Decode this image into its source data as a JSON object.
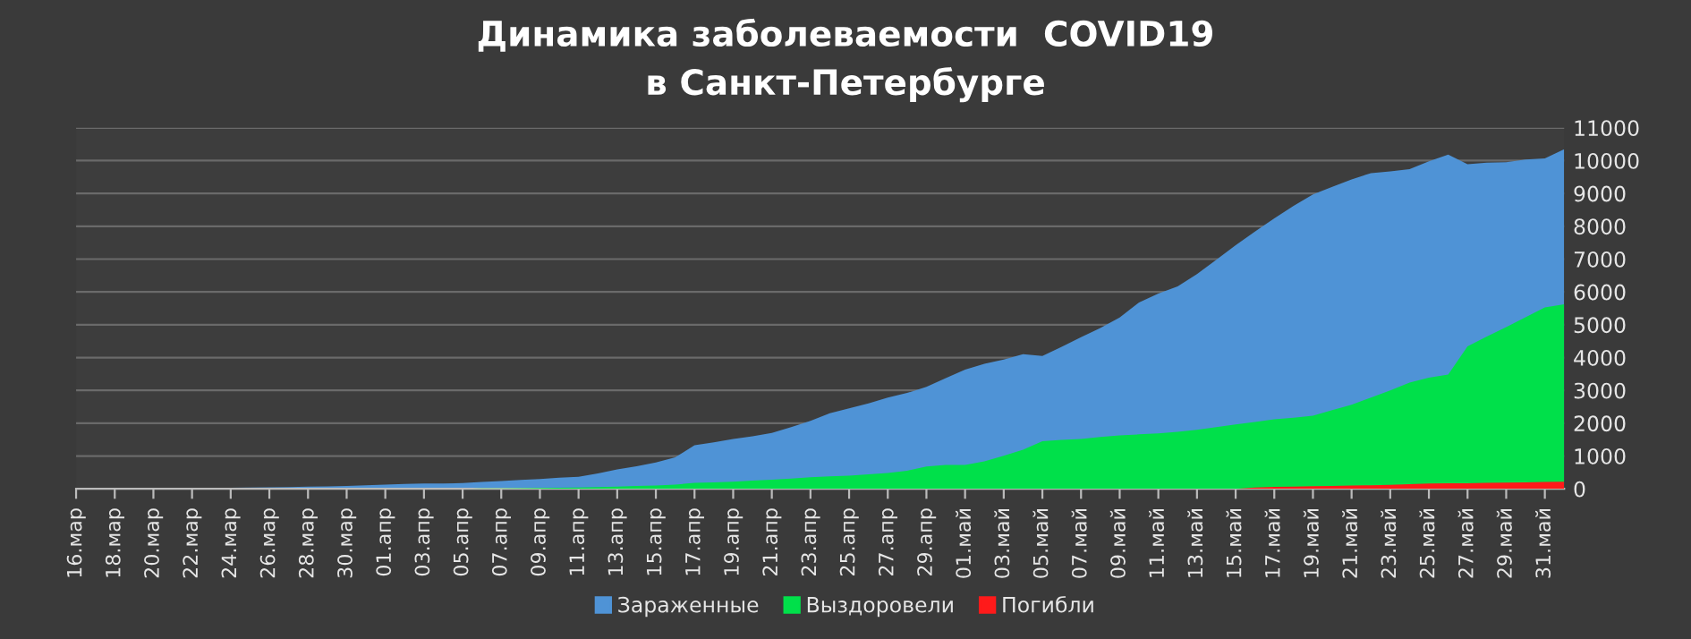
{
  "chart_data": {
    "type": "area",
    "title": "Динамика заболеваемости  COVID19\nв Санкт-Петербурге",
    "categories": [
      "16.мар",
      null,
      "18.мар",
      null,
      "20.мар",
      null,
      "22.мар",
      null,
      "24.мар",
      null,
      "26.мар",
      null,
      "28.мар",
      null,
      "30.мар",
      null,
      "01.апр",
      null,
      "03.апр",
      null,
      "05.апр",
      null,
      "07.апр",
      null,
      "09.апр",
      null,
      "11.апр",
      null,
      "13.апр",
      null,
      "15.апр",
      null,
      "17.апр",
      null,
      "19.апр",
      null,
      "21.апр",
      null,
      "23.апр",
      null,
      "25.апр",
      null,
      "27.апр",
      null,
      "29.апр",
      null,
      "01.май",
      null,
      "03.май",
      null,
      "05.май",
      null,
      "07.май",
      null,
      "09.май",
      null,
      "11.май",
      null,
      "13.май",
      null,
      "15.май",
      null,
      "17.май",
      null,
      "19.май",
      null,
      "21.май",
      null,
      "23.май",
      null,
      "25.май",
      null,
      "27.май",
      null,
      "29.май",
      null,
      "31.май",
      null
    ],
    "series": [
      {
        "name": "Зараженные",
        "color": "#4f93d6",
        "values": [
          4,
          6,
          8,
          10,
          13,
          17,
          21,
          27,
          33,
          40,
          45,
          55,
          65,
          75,
          90,
          110,
          130,
          150,
          160,
          165,
          175,
          210,
          240,
          270,
          300,
          340,
          370,
          470,
          590,
          690,
          800,
          960,
          1330,
          1420,
          1520,
          1600,
          1700,
          1880,
          2070,
          2300,
          2450,
          2600,
          2780,
          2920,
          3110,
          3370,
          3630,
          3810,
          3940,
          4100,
          4050,
          4330,
          4620,
          4900,
          5220,
          5680,
          5950,
          6170,
          6540,
          6980,
          7420,
          7840,
          8240,
          8620,
          8970,
          9200,
          9430,
          9620,
          9670,
          9740,
          9980,
          10180,
          9890,
          9940,
          9950,
          10030,
          10070,
          10350
        ]
      },
      {
        "name": "Выздоровели",
        "color": "#00e04a",
        "values": [
          0,
          0,
          0,
          0,
          0,
          0,
          0,
          0,
          0,
          0,
          0,
          0,
          0,
          0,
          0,
          0,
          0,
          0,
          0,
          0,
          0,
          10,
          15,
          20,
          25,
          30,
          40,
          55,
          70,
          85,
          100,
          130,
          180,
          200,
          220,
          250,
          280,
          310,
          350,
          380,
          400,
          440,
          480,
          550,
          680,
          730,
          730,
          840,
          1010,
          1190,
          1450,
          1490,
          1520,
          1580,
          1630,
          1660,
          1690,
          1740,
          1800,
          1880,
          1960,
          2040,
          2120,
          2170,
          2230,
          2400,
          2560,
          2780,
          3000,
          3240,
          3390,
          3480,
          4340,
          4640,
          4930,
          5230,
          5530,
          5620
        ]
      },
      {
        "name": "Погибли",
        "color": "#ff1a1a",
        "values": [
          0,
          0,
          0,
          0,
          0,
          0,
          0,
          0,
          0,
          0,
          0,
          0,
          0,
          0,
          0,
          0,
          0,
          0,
          0,
          0,
          0,
          0,
          0,
          0,
          0,
          0,
          0,
          0,
          0,
          0,
          0,
          0,
          0,
          0,
          0,
          0,
          0,
          0,
          0,
          0,
          0,
          0,
          0,
          0,
          0,
          0,
          0,
          0,
          0,
          0,
          0,
          0,
          0,
          0,
          0,
          0,
          0,
          0,
          0,
          0,
          0,
          40,
          60,
          70,
          80,
          90,
          100,
          110,
          120,
          140,
          160,
          170,
          170,
          180,
          190,
          200,
          210,
          220
        ]
      }
    ],
    "ylim": [
      0,
      11000
    ],
    "yticks": [
      0,
      1000,
      2000,
      3000,
      4000,
      5000,
      6000,
      7000,
      8000,
      9000,
      10000,
      11000
    ],
    "grid": "y",
    "legend": "bottom"
  }
}
